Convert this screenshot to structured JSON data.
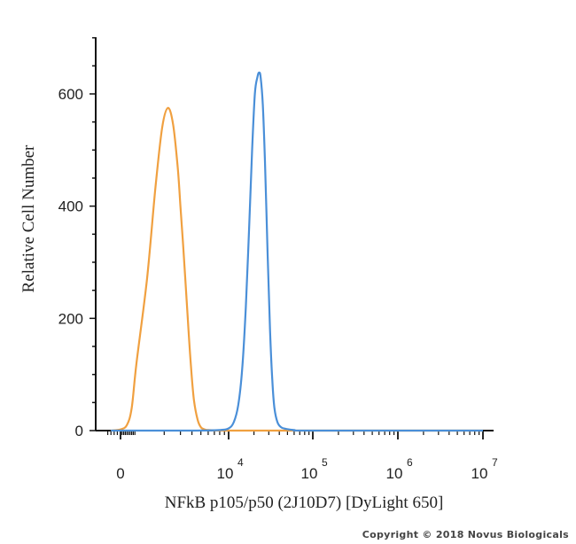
{
  "chart_data": {
    "type": "line",
    "title": "",
    "xlabel": "NFkB p105/p50 (2J10D7) [DyLight 650]",
    "ylabel": "Relative Cell Number",
    "x_scale": "biexponential",
    "x_ticks": [
      {
        "value": 0,
        "base": "0",
        "exp": ""
      },
      {
        "value": 10000,
        "base": "10",
        "exp": "4"
      },
      {
        "value": 100000,
        "base": "10",
        "exp": "5"
      },
      {
        "value": 1000000,
        "base": "10",
        "exp": "6"
      },
      {
        "value": 10000000,
        "base": "10",
        "exp": "7"
      }
    ],
    "y_ticks": [
      0,
      200,
      400,
      600
    ],
    "ylim": [
      0,
      700
    ],
    "grid": false,
    "legend": "none",
    "series": [
      {
        "color": "#f0a040",
        "x": [
          -300,
          0,
          400,
          700,
          1000,
          1300,
          1600,
          1900,
          2200,
          2500,
          2800,
          3000,
          3300,
          3600,
          3900,
          4200,
          4600,
          5000,
          5500,
          6000,
          8000,
          20000,
          60000,
          10000000
        ],
        "y": [
          0,
          2,
          10,
          40,
          120,
          270,
          430,
          540,
          575,
          545,
          470,
          400,
          300,
          200,
          115,
          55,
          20,
          6,
          2,
          1,
          0,
          0,
          0,
          0
        ]
      },
      {
        "color": "#4a8fd8",
        "x": [
          -300,
          4000,
          8000,
          10000,
          11500,
          13000,
          14500,
          16000,
          17500,
          19000,
          20500,
          22000,
          23000,
          24000,
          25500,
          27000,
          29000,
          31000,
          33000,
          35000,
          38000,
          42000,
          48000,
          60000,
          100000,
          10000000
        ],
        "y": [
          0,
          0,
          1,
          4,
          15,
          45,
          110,
          220,
          360,
          500,
          600,
          630,
          638,
          630,
          580,
          480,
          320,
          180,
          90,
          40,
          15,
          6,
          3,
          1,
          0,
          0
        ]
      }
    ]
  },
  "copyright": "Copyright © 2018 Novus Biologicals"
}
